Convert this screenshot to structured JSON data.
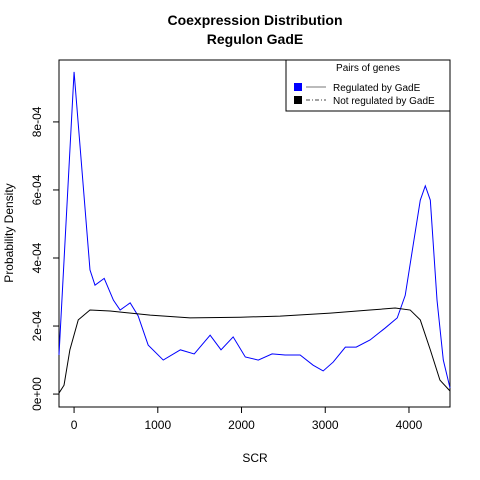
{
  "chart_data": {
    "type": "line",
    "title": "Coexpression Distribution",
    "subtitle": "Regulon GadE",
    "x_label": "SCR",
    "y_label": "Probability Density",
    "legend_title": "Pairs of genes",
    "legend_position": "top-right",
    "xlim": [
      -180,
      4490
    ],
    "ylim": [
      -3.8e-05,
      0.000982
    ],
    "xticks": [
      0,
      1000,
      2000,
      3000,
      4000
    ],
    "yticks": [
      {
        "value": 0,
        "label": "0e+00"
      },
      {
        "value": 0.0002,
        "label": "2e-04"
      },
      {
        "value": 0.0004,
        "label": "4e-04"
      },
      {
        "value": 0.0006,
        "label": "6e-04"
      },
      {
        "value": 0.0008,
        "label": "8e-04"
      }
    ],
    "series": [
      {
        "name": "Regulated by GadE",
        "color": "#0000ff",
        "x": [
          -180,
          0,
          190,
          250,
          360,
          470,
          550,
          670,
          765,
          885,
          1065,
          1270,
          1435,
          1625,
          1755,
          1900,
          2045,
          2200,
          2365,
          2520,
          2700,
          2855,
          2975,
          3095,
          3240,
          3370,
          3535,
          3715,
          3860,
          3955,
          4050,
          4135,
          4195,
          4255,
          4335,
          4410,
          4490
        ],
        "values": [
          0.000115,
          0.000947,
          0.000365,
          0.00032,
          0.00034,
          0.000276,
          0.000247,
          0.000268,
          0.00023,
          0.000144,
          0.0001,
          0.00013,
          0.000118,
          0.000173,
          0.00013,
          0.000168,
          0.000109,
          0.0001,
          0.000118,
          0.000115,
          0.000115,
          8.5e-05,
          6.8e-05,
          9.4e-05,
          0.000138,
          0.000138,
          0.000159,
          0.000194,
          0.000224,
          0.00029,
          0.000438,
          0.00057,
          0.000612,
          0.00057,
          0.000276,
          0.0001,
          1.8e-05
        ]
      },
      {
        "name": "Not regulated by GadE",
        "color": "#000000",
        "x": [
          -180,
          -120,
          -50,
          50,
          190,
          430,
          910,
          1385,
          1985,
          2460,
          3060,
          3535,
          3835,
          4015,
          4135,
          4255,
          4370,
          4490
        ],
        "values": [
          3e-06,
          2.6e-05,
          0.00013,
          0.000218,
          0.000247,
          0.000244,
          0.000232,
          0.000224,
          0.000226,
          0.000229,
          0.000238,
          0.000247,
          0.000253,
          0.000247,
          0.000218,
          0.00013,
          4.1e-05,
          9e-06
        ]
      }
    ]
  }
}
